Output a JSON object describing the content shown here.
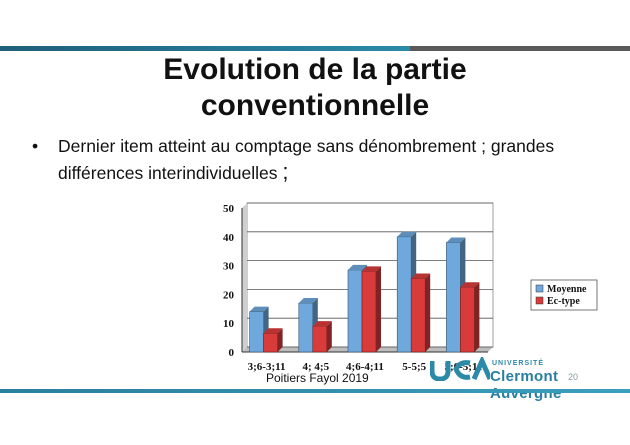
{
  "slide": {
    "title_line1": "Evolution de la partie",
    "title_line2": "conventionnelle",
    "bullet_marker": "•",
    "bullet_text": "Dernier item atteint au comptage sans dénombrement ; grandes différences interindividuelles",
    "bullet_end": ";",
    "footer": "Poitiers Fayol 2019",
    "page_number": "20",
    "logo_university": "UNIVERSITÉ",
    "logo_name": "Clermont Auvergne"
  },
  "colors": {
    "moyenne": "#6fa8dc",
    "ectype": "#d93b3b",
    "accent": "#2a8aa8"
  },
  "chart_data": {
    "type": "bar",
    "categories": [
      "3;6-3;11",
      "4; 4;5",
      "4;6-4;11",
      "5-5;5",
      "5;6-5;11"
    ],
    "series": [
      {
        "name": "Moyenne",
        "values": [
          14,
          17,
          28.5,
          40,
          38
        ]
      },
      {
        "name": "Ec-type",
        "values": [
          6.5,
          9,
          28,
          25.5,
          22.5
        ]
      }
    ],
    "yticks": [
      0,
      10,
      20,
      30,
      40,
      50
    ],
    "ylim": [
      0,
      50
    ],
    "legend_position": "right",
    "grid": true
  }
}
